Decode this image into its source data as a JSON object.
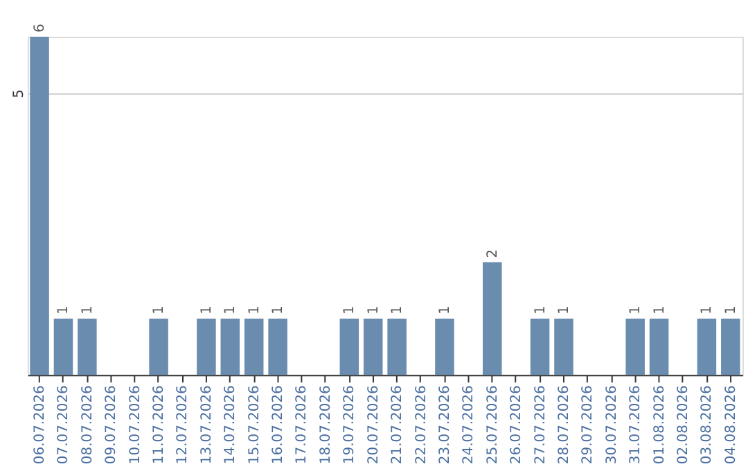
{
  "chart_data": {
    "type": "bar",
    "categories": [
      "06.07.2026",
      "07.07.2026",
      "08.07.2026",
      "09.07.2026",
      "10.07.2026",
      "11.07.2026",
      "12.07.2026",
      "13.07.2026",
      "14.07.2026",
      "15.07.2026",
      "16.07.2026",
      "17.07.2026",
      "18.07.2026",
      "19.07.2026",
      "20.07.2026",
      "21.07.2026",
      "22.07.2026",
      "23.07.2026",
      "24.07.2026",
      "25.07.2026",
      "26.07.2026",
      "27.07.2026",
      "28.07.2026",
      "29.07.2026",
      "30.07.2026",
      "31.07.2026",
      "01.08.2026",
      "02.08.2026",
      "03.08.2026",
      "04.08.2026"
    ],
    "values": [
      6,
      1,
      1,
      0,
      0,
      1,
      0,
      1,
      1,
      1,
      1,
      0,
      0,
      1,
      1,
      1,
      0,
      1,
      0,
      2,
      0,
      1,
      1,
      0,
      0,
      1,
      1,
      0,
      1,
      1
    ],
    "value_labels": [
      "6",
      "1",
      "1",
      null,
      null,
      "1",
      null,
      "1",
      "1",
      "1",
      "1",
      null,
      null,
      "1",
      "1",
      "1",
      null,
      "1",
      null,
      "2",
      null,
      "1",
      "1",
      null,
      null,
      "1",
      "1",
      null,
      "1",
      "1"
    ],
    "color": "#6a8caf",
    "ylim": [
      0,
      6
    ],
    "yticks": [
      5
    ],
    "grid": "y",
    "legend": false
  }
}
